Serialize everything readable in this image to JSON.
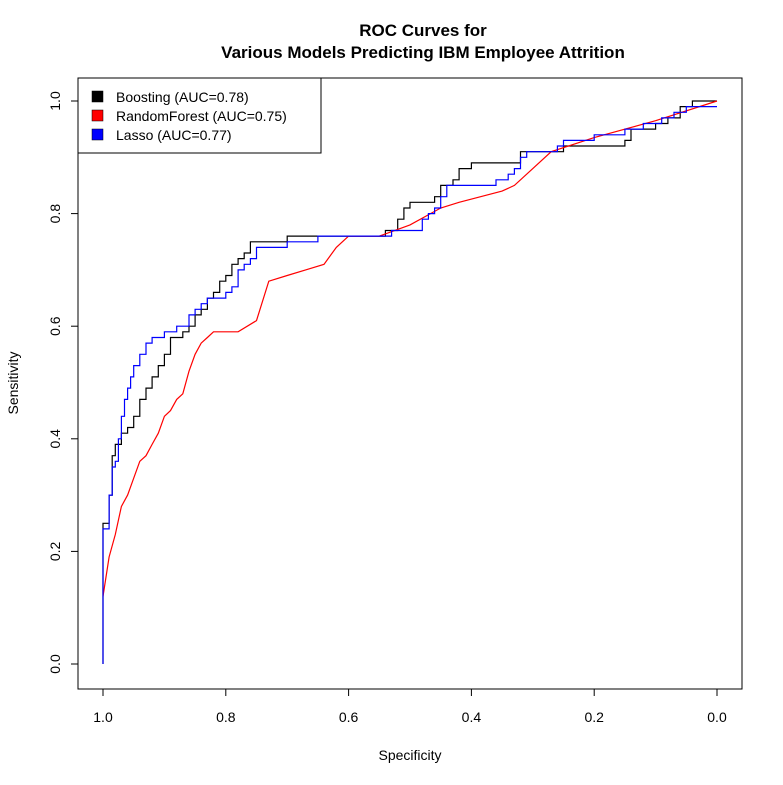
{
  "chart_data": {
    "type": "line",
    "title": "ROC Curves for",
    "subtitle": "Various Models Predicting IBM Employee Attrition",
    "xlabel": "Specificity",
    "ylabel": "Sensitivity",
    "xlim": [
      1.0,
      0.0
    ],
    "ylim": [
      0.0,
      1.0
    ],
    "x_reversed": true,
    "grid": false,
    "legend_position": "top-left",
    "x_ticks": [
      {
        "value": 1.0,
        "label": "1.0"
      },
      {
        "value": 0.8,
        "label": "0.8"
      },
      {
        "value": 0.6,
        "label": "0.6"
      },
      {
        "value": 0.4,
        "label": "0.4"
      },
      {
        "value": 0.2,
        "label": "0.2"
      },
      {
        "value": 0.0,
        "label": "0.0"
      }
    ],
    "y_ticks": [
      {
        "value": 0.0,
        "label": "0.0"
      },
      {
        "value": 0.2,
        "label": "0.2"
      },
      {
        "value": 0.4,
        "label": "0.4"
      },
      {
        "value": 0.6,
        "label": "0.6"
      },
      {
        "value": 0.8,
        "label": "0.8"
      },
      {
        "value": 1.0,
        "label": "1.0"
      }
    ],
    "series": [
      {
        "name": "Boosting (AUC=0.78)",
        "color": "#000000",
        "step": true,
        "points": [
          [
            1.0,
            0.0
          ],
          [
            1.0,
            0.2
          ],
          [
            0.99,
            0.25
          ],
          [
            0.985,
            0.3
          ],
          [
            0.98,
            0.37
          ],
          [
            0.97,
            0.39
          ],
          [
            0.96,
            0.41
          ],
          [
            0.95,
            0.42
          ],
          [
            0.94,
            0.44
          ],
          [
            0.93,
            0.47
          ],
          [
            0.92,
            0.49
          ],
          [
            0.91,
            0.51
          ],
          [
            0.9,
            0.53
          ],
          [
            0.89,
            0.55
          ],
          [
            0.87,
            0.58
          ],
          [
            0.86,
            0.59
          ],
          [
            0.85,
            0.6
          ],
          [
            0.84,
            0.62
          ],
          [
            0.83,
            0.63
          ],
          [
            0.82,
            0.65
          ],
          [
            0.81,
            0.66
          ],
          [
            0.8,
            0.68
          ],
          [
            0.79,
            0.69
          ],
          [
            0.78,
            0.71
          ],
          [
            0.77,
            0.72
          ],
          [
            0.76,
            0.73
          ],
          [
            0.7,
            0.75
          ],
          [
            0.6,
            0.76
          ],
          [
            0.54,
            0.76
          ],
          [
            0.52,
            0.77
          ],
          [
            0.51,
            0.79
          ],
          [
            0.5,
            0.81
          ],
          [
            0.49,
            0.82
          ],
          [
            0.46,
            0.82
          ],
          [
            0.45,
            0.83
          ],
          [
            0.43,
            0.85
          ],
          [
            0.42,
            0.86
          ],
          [
            0.4,
            0.88
          ],
          [
            0.38,
            0.89
          ],
          [
            0.32,
            0.89
          ],
          [
            0.31,
            0.91
          ],
          [
            0.25,
            0.91
          ],
          [
            0.24,
            0.92
          ],
          [
            0.15,
            0.92
          ],
          [
            0.14,
            0.93
          ],
          [
            0.1,
            0.95
          ],
          [
            0.08,
            0.96
          ],
          [
            0.06,
            0.97
          ],
          [
            0.04,
            0.99
          ],
          [
            0.03,
            1.0
          ],
          [
            0.0,
            1.0
          ]
        ]
      },
      {
        "name": "RandomForest (AUC=0.75)",
        "color": "#ff0000",
        "step": false,
        "points": [
          [
            1.0,
            0.12
          ],
          [
            0.99,
            0.19
          ],
          [
            0.98,
            0.23
          ],
          [
            0.97,
            0.28
          ],
          [
            0.96,
            0.3
          ],
          [
            0.95,
            0.33
          ],
          [
            0.94,
            0.36
          ],
          [
            0.93,
            0.37
          ],
          [
            0.92,
            0.39
          ],
          [
            0.91,
            0.41
          ],
          [
            0.9,
            0.44
          ],
          [
            0.89,
            0.45
          ],
          [
            0.88,
            0.47
          ],
          [
            0.87,
            0.48
          ],
          [
            0.86,
            0.52
          ],
          [
            0.85,
            0.55
          ],
          [
            0.84,
            0.57
          ],
          [
            0.83,
            0.58
          ],
          [
            0.82,
            0.59
          ],
          [
            0.8,
            0.59
          ],
          [
            0.78,
            0.59
          ],
          [
            0.75,
            0.61
          ],
          [
            0.73,
            0.68
          ],
          [
            0.7,
            0.69
          ],
          [
            0.67,
            0.7
          ],
          [
            0.64,
            0.71
          ],
          [
            0.62,
            0.74
          ],
          [
            0.6,
            0.76
          ],
          [
            0.55,
            0.76
          ],
          [
            0.5,
            0.78
          ],
          [
            0.45,
            0.81
          ],
          [
            0.42,
            0.82
          ],
          [
            0.35,
            0.84
          ],
          [
            0.33,
            0.85
          ],
          [
            0.3,
            0.88
          ],
          [
            0.27,
            0.91
          ],
          [
            0.2,
            0.935
          ],
          [
            0.1,
            0.965
          ],
          [
            0.0,
            1.0
          ]
        ]
      },
      {
        "name": "Lasso (AUC=0.77)",
        "color": "#0000ff",
        "step": true,
        "points": [
          [
            1.0,
            0.0
          ],
          [
            1.0,
            0.18
          ],
          [
            0.99,
            0.24
          ],
          [
            0.985,
            0.3
          ],
          [
            0.98,
            0.35
          ],
          [
            0.975,
            0.36
          ],
          [
            0.97,
            0.4
          ],
          [
            0.965,
            0.44
          ],
          [
            0.96,
            0.47
          ],
          [
            0.955,
            0.49
          ],
          [
            0.95,
            0.51
          ],
          [
            0.94,
            0.53
          ],
          [
            0.93,
            0.55
          ],
          [
            0.92,
            0.57
          ],
          [
            0.9,
            0.58
          ],
          [
            0.88,
            0.59
          ],
          [
            0.86,
            0.6
          ],
          [
            0.85,
            0.62
          ],
          [
            0.84,
            0.63
          ],
          [
            0.83,
            0.64
          ],
          [
            0.82,
            0.65
          ],
          [
            0.8,
            0.65
          ],
          [
            0.79,
            0.66
          ],
          [
            0.78,
            0.67
          ],
          [
            0.77,
            0.7
          ],
          [
            0.76,
            0.71
          ],
          [
            0.75,
            0.72
          ],
          [
            0.7,
            0.74
          ],
          [
            0.65,
            0.75
          ],
          [
            0.6,
            0.76
          ],
          [
            0.53,
            0.76
          ],
          [
            0.52,
            0.77
          ],
          [
            0.48,
            0.77
          ],
          [
            0.47,
            0.79
          ],
          [
            0.46,
            0.8
          ],
          [
            0.45,
            0.81
          ],
          [
            0.44,
            0.83
          ],
          [
            0.43,
            0.85
          ],
          [
            0.36,
            0.85
          ],
          [
            0.34,
            0.86
          ],
          [
            0.33,
            0.87
          ],
          [
            0.32,
            0.88
          ],
          [
            0.31,
            0.9
          ],
          [
            0.3,
            0.91
          ],
          [
            0.26,
            0.91
          ],
          [
            0.25,
            0.92
          ],
          [
            0.2,
            0.93
          ],
          [
            0.15,
            0.94
          ],
          [
            0.12,
            0.95
          ],
          [
            0.09,
            0.96
          ],
          [
            0.07,
            0.97
          ],
          [
            0.05,
            0.98
          ],
          [
            0.02,
            0.99
          ],
          [
            0.0,
            0.99
          ]
        ]
      }
    ]
  }
}
